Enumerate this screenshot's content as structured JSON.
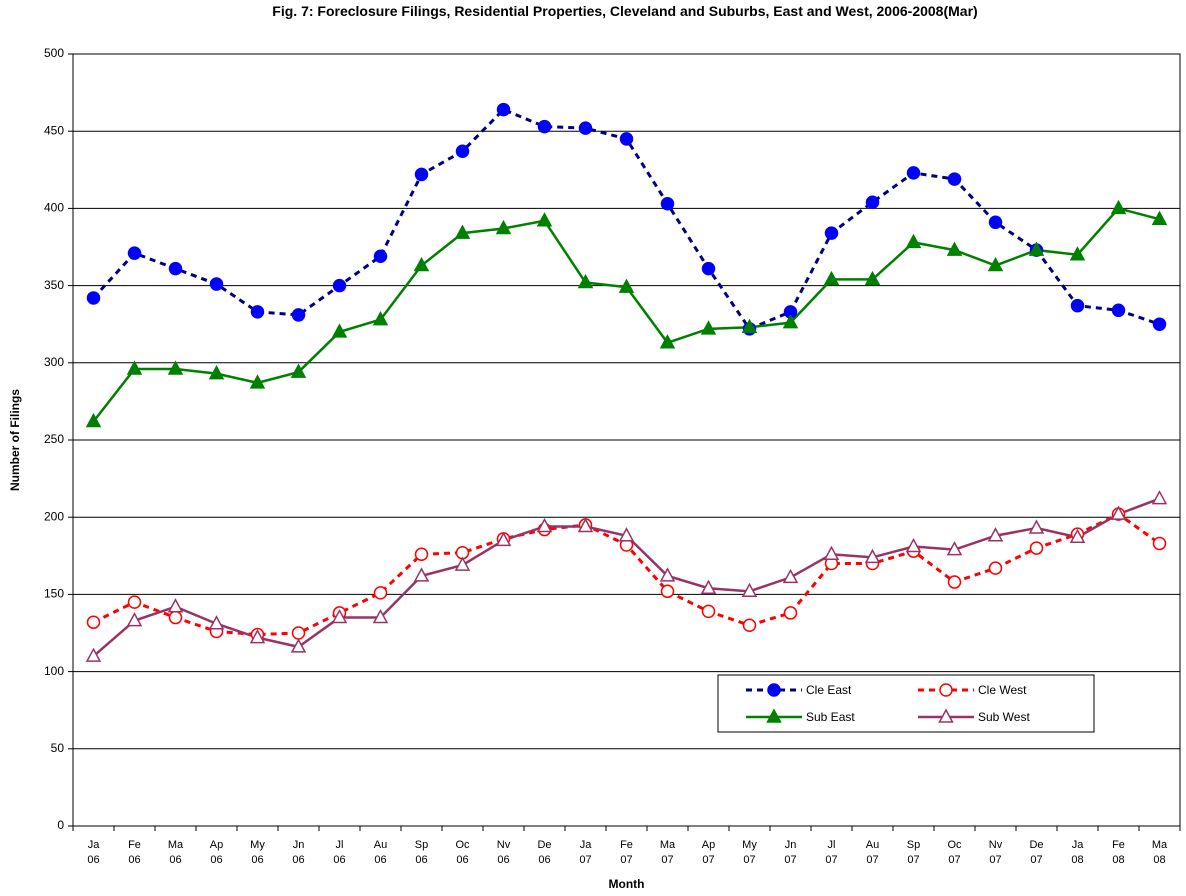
{
  "chart_data": {
    "type": "line",
    "title": "Fig. 7: Foreclosure Filings, Residential Properties, Cleveland and Suburbs, East and West, 2006-2008(Mar)",
    "x_label": "Month",
    "y_label": "Number of Filings",
    "categories": [
      "Ja 06",
      "Fe 06",
      "Ma 06",
      "Ap 06",
      "My 06",
      "Jn 06",
      "Jl 06",
      "Au 06",
      "Sp 06",
      "Oc 06",
      "Nv 06",
      "De 06",
      "Ja 07",
      "Fe 07",
      "Ma 07",
      "Ap 07",
      "My 07",
      "Jn 07",
      "Jl 07",
      "Au 07",
      "Sp 07",
      "Oc 07",
      "Nv 07",
      "De 07",
      "Ja 08",
      "Fe 08",
      "Ma 08"
    ],
    "series": [
      {
        "name": "Cle East",
        "color": "#0000ff",
        "line_color": "#000080",
        "dashed": true,
        "marker": "circle",
        "filled": true,
        "values": [
          342,
          371,
          361,
          351,
          333,
          331,
          350,
          369,
          422,
          437,
          464,
          453,
          452,
          445,
          403,
          361,
          322,
          333,
          384,
          404,
          423,
          419,
          391,
          373,
          337,
          334,
          325
        ]
      },
      {
        "name": "Cle West",
        "color": "#ff0000",
        "line_color": "#ff0000",
        "dashed": true,
        "marker": "circle",
        "filled": false,
        "values": [
          132,
          145,
          135,
          126,
          124,
          125,
          138,
          151,
          176,
          177,
          186,
          192,
          195,
          182,
          152,
          139,
          130,
          138,
          170,
          170,
          178,
          158,
          167,
          180,
          189,
          202,
          183
        ]
      },
      {
        "name": "Sub East",
        "color": "#008000",
        "line_color": "#008000",
        "dashed": false,
        "marker": "triangle",
        "filled": true,
        "values": [
          262,
          296,
          296,
          293,
          287,
          294,
          320,
          328,
          363,
          384,
          387,
          392,
          352,
          349,
          313,
          322,
          323,
          326,
          354,
          354,
          378,
          373,
          363,
          373,
          370,
          400,
          393
        ]
      },
      {
        "name": "Sub West",
        "color": "#993366",
        "line_color": "#993366",
        "dashed": false,
        "marker": "triangle",
        "filled": false,
        "values": [
          110,
          133,
          142,
          131,
          122,
          116,
          135,
          135,
          162,
          169,
          185,
          194,
          194,
          188,
          162,
          154,
          152,
          161,
          176,
          174,
          181,
          179,
          188,
          193,
          187,
          202,
          212
        ]
      }
    ],
    "ylim": [
      0,
      500
    ],
    "yticks": [
      0,
      50,
      100,
      150,
      200,
      250,
      300,
      350,
      400,
      450,
      500
    ],
    "grid": true
  }
}
